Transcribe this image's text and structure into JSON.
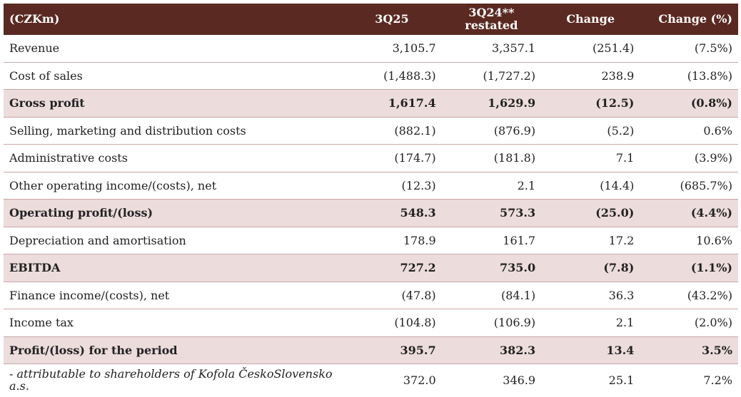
{
  "table": {
    "header": [
      "(CZKm)",
      "3Q25",
      "3Q24**\nrestated",
      "Change",
      "Change (%)"
    ],
    "rows": [
      [
        "Revenue",
        "3,105.7",
        "3,357.1",
        "(251.4)",
        "(7.5%)"
      ],
      [
        "Cost of sales",
        "(1,488.3)",
        "(1,727.2)",
        "238.9",
        "(13.8%)"
      ],
      [
        "Gross profit",
        "1,617.4",
        "1,629.9",
        "(12.5)",
        "(0.8%)"
      ],
      [
        "Selling, marketing and distribution costs",
        "(882.1)",
        "(876.9)",
        "(5.2)",
        "0.6%"
      ],
      [
        "Administrative costs",
        "(174.7)",
        "(181.8)",
        "7.1",
        "(3.9%)"
      ],
      [
        "Other operating income/(costs), net",
        "(12.3)",
        "2.1",
        "(14.4)",
        "(685.7%)"
      ],
      [
        "Operating profit/(loss)",
        "548.3",
        "573.3",
        "(25.0)",
        "(4.4%)"
      ],
      [
        "Depreciation and amortisation",
        "178.9",
        "161.7",
        "17.2",
        "10.6%"
      ],
      [
        "EBITDA",
        "727.2",
        "735.0",
        "(7.8)",
        "(1.1%)"
      ],
      [
        "Finance income/(costs), net",
        "(47.8)",
        "(84.1)",
        "36.3",
        "(43.2%)"
      ],
      [
        "Income tax",
        "(104.8)",
        "(106.9)",
        "2.1",
        "(2.0%)"
      ],
      [
        "Profit/(loss) for the period",
        "395.7",
        "382.3",
        "13.4",
        "3.5%"
      ],
      [
        "- attributable to shareholders of Kofola ČeskoSlovensko a.s.",
        "372.0",
        "346.9",
        "25.1",
        "7.2%"
      ]
    ]
  }
}
